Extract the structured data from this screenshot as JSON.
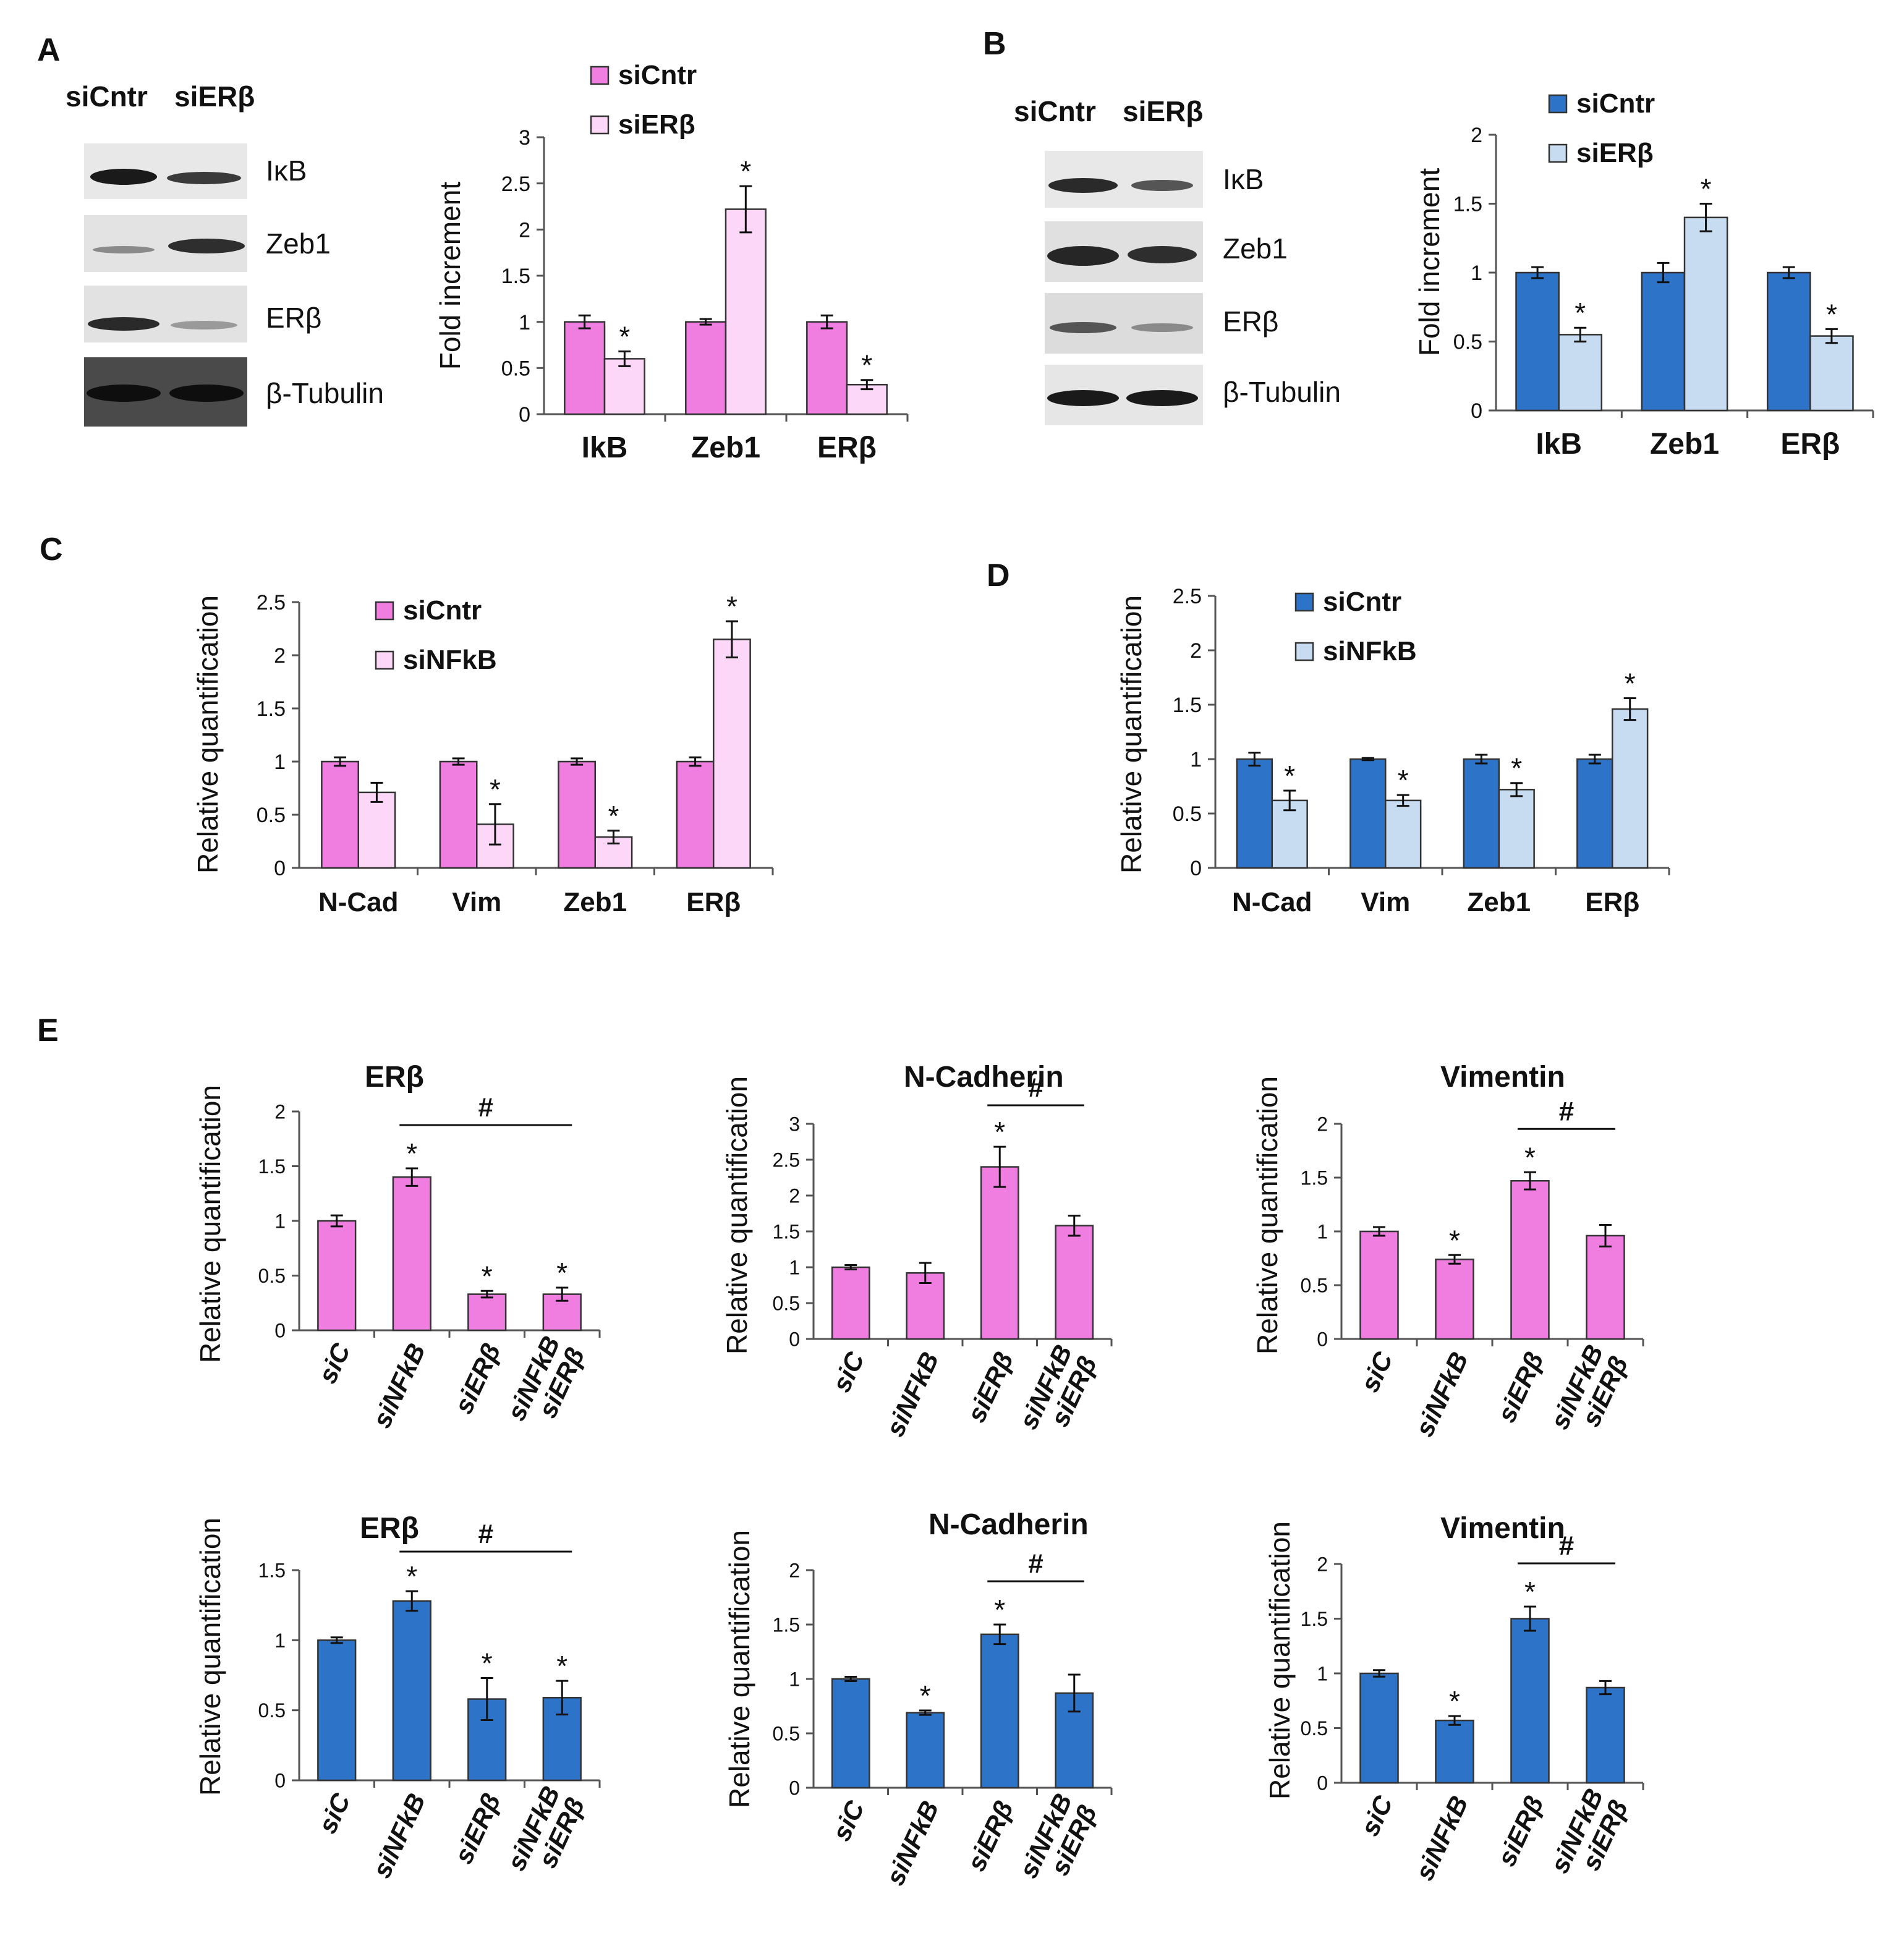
{
  "colors": {
    "pink": "#f07ee0",
    "pink_light": "#fdd7f7",
    "blue": "#2d73c8",
    "blue_light": "#c8dcf1",
    "border": "#333333"
  },
  "panels": {
    "A": {
      "label": "A",
      "blot_header": [
        "siCntr",
        "siERβ"
      ],
      "blot_labels": [
        "IκB",
        "Zeb1",
        "ERβ",
        "β-Tubulin"
      ]
    },
    "B": {
      "label": "B",
      "blot_header": [
        "siCntr",
        "siERβ"
      ],
      "blot_labels": [
        "IκB",
        "Zeb1",
        "ERβ",
        "β-Tubulin"
      ]
    },
    "C": {
      "label": "C"
    },
    "D": {
      "label": "D"
    },
    "E": {
      "label": "E"
    }
  },
  "chart_data": [
    {
      "id": "A",
      "type": "bar",
      "palette": "pink",
      "ylabel": "Fold increment",
      "ylim": [
        0,
        3
      ],
      "yticks": [
        "0",
        "0.5",
        "1",
        "1.5",
        "2",
        "2.5",
        "3"
      ],
      "categories": [
        "IkB",
        "Zeb1",
        "ERβ"
      ],
      "series": [
        {
          "name": "siCntr",
          "values": [
            1.0,
            1.0,
            1.0
          ],
          "errors": [
            0.07,
            0.03,
            0.07
          ],
          "stars": [
            false,
            false,
            false
          ]
        },
        {
          "name": "siERβ",
          "values": [
            0.6,
            2.22,
            0.32
          ],
          "errors": [
            0.08,
            0.25,
            0.05
          ],
          "stars": [
            true,
            true,
            true
          ]
        }
      ],
      "legend": "top"
    },
    {
      "id": "B",
      "type": "bar",
      "palette": "blue",
      "ylabel": "Fold increment",
      "ylim": [
        0,
        2
      ],
      "yticks": [
        "0",
        "0.5",
        "1",
        "1.5",
        "2"
      ],
      "categories": [
        "IkB",
        "Zeb1",
        "ERβ"
      ],
      "series": [
        {
          "name": "siCntr",
          "values": [
            1.0,
            1.0,
            1.0
          ],
          "errors": [
            0.04,
            0.07,
            0.04
          ],
          "stars": [
            false,
            false,
            false
          ]
        },
        {
          "name": "siERβ",
          "values": [
            0.55,
            1.4,
            0.54
          ],
          "errors": [
            0.05,
            0.1,
            0.05
          ],
          "stars": [
            true,
            true,
            true
          ]
        }
      ],
      "legend": "top"
    },
    {
      "id": "C",
      "type": "bar",
      "palette": "pink",
      "ylabel": "Relative quantification",
      "ylim": [
        0,
        2.5
      ],
      "yticks": [
        "0",
        "0.5",
        "1",
        "1.5",
        "2",
        "2.5"
      ],
      "categories": [
        "N-Cad",
        "Vim",
        "Zeb1",
        "ERβ"
      ],
      "series": [
        {
          "name": "siCntr",
          "values": [
            1.0,
            1.0,
            1.0,
            1.0
          ],
          "errors": [
            0.04,
            0.03,
            0.03,
            0.04
          ],
          "stars": [
            false,
            false,
            false,
            false
          ]
        },
        {
          "name": "siNFkB",
          "values": [
            0.71,
            0.41,
            0.29,
            2.15
          ],
          "errors": [
            0.09,
            0.19,
            0.06,
            0.17
          ],
          "stars": [
            false,
            true,
            true,
            true
          ]
        }
      ],
      "legend": "top-left"
    },
    {
      "id": "D",
      "type": "bar",
      "palette": "blue",
      "ylabel": "Relative quantification",
      "ylim": [
        0,
        2.5
      ],
      "yticks": [
        "0",
        "0.5",
        "1",
        "1.5",
        "2",
        "2.5"
      ],
      "categories": [
        "N-Cad",
        "Vim",
        "Zeb1",
        "ERβ"
      ],
      "series": [
        {
          "name": "siCntr",
          "values": [
            1.0,
            1.0,
            1.0,
            1.0
          ],
          "errors": [
            0.06,
            0.01,
            0.04,
            0.04
          ],
          "stars": [
            false,
            false,
            false,
            false
          ]
        },
        {
          "name": "siNFkB",
          "values": [
            0.62,
            0.62,
            0.72,
            1.46
          ],
          "errors": [
            0.09,
            0.05,
            0.06,
            0.1
          ],
          "stars": [
            true,
            true,
            true,
            true
          ]
        }
      ],
      "legend": "top-left"
    },
    {
      "id": "E1",
      "type": "bar",
      "palette": "pink",
      "title": "ERβ",
      "ylabel": "Relative quantification",
      "ylim": [
        0,
        2
      ],
      "yticks": [
        "0",
        "0.5",
        "1",
        "1.5",
        "2"
      ],
      "categories": [
        "siC",
        "siNFkB",
        "siERβ",
        "siNFkB siERβ"
      ],
      "series": [
        {
          "name": "",
          "values": [
            1.0,
            1.4,
            0.33,
            0.33
          ],
          "errors": [
            0.05,
            0.08,
            0.03,
            0.06
          ],
          "stars": [
            false,
            true,
            true,
            true
          ]
        }
      ],
      "significance": {
        "label": "#",
        "from": 1,
        "to": 3
      }
    },
    {
      "id": "E2",
      "type": "bar",
      "palette": "pink",
      "title": "N-Cadherin",
      "ylabel": "Relative quantification",
      "ylim": [
        0,
        3
      ],
      "yticks": [
        "0",
        "0.5",
        "1",
        "1.5",
        "2",
        "2.5",
        "3"
      ],
      "categories": [
        "siC",
        "siNFkB",
        "siERβ",
        "siNFkB siERβ"
      ],
      "series": [
        {
          "name": "",
          "values": [
            1.0,
            0.92,
            2.4,
            1.58
          ],
          "errors": [
            0.03,
            0.14,
            0.28,
            0.14
          ],
          "stars": [
            false,
            false,
            true,
            false
          ]
        }
      ],
      "significance": {
        "label": "#",
        "from": 2,
        "to": 3
      }
    },
    {
      "id": "E3",
      "type": "bar",
      "palette": "pink",
      "title": "Vimentin",
      "ylabel": "Relative quantification",
      "ylim": [
        0,
        2
      ],
      "yticks": [
        "0",
        "0.5",
        "1",
        "1.5",
        "2"
      ],
      "categories": [
        "siC",
        "siNFkB",
        "siERβ",
        "siNFkB siERβ"
      ],
      "series": [
        {
          "name": "",
          "values": [
            1.0,
            0.74,
            1.47,
            0.96
          ],
          "errors": [
            0.04,
            0.04,
            0.08,
            0.1
          ],
          "stars": [
            false,
            true,
            true,
            false
          ]
        }
      ],
      "significance": {
        "label": "#",
        "from": 2,
        "to": 3
      }
    },
    {
      "id": "E4",
      "type": "bar",
      "palette": "blue",
      "title": "ERβ",
      "ylabel": "Relative quantification",
      "ylim": [
        0,
        1.5
      ],
      "yticks": [
        "0",
        "0.5",
        "1",
        "1.5"
      ],
      "categories": [
        "siC",
        "siNFkB",
        "siERβ",
        "siNFkB siERβ"
      ],
      "series": [
        {
          "name": "",
          "values": [
            1.0,
            1.28,
            0.58,
            0.59
          ],
          "errors": [
            0.02,
            0.07,
            0.15,
            0.12
          ],
          "stars": [
            false,
            true,
            true,
            true
          ]
        }
      ],
      "significance": {
        "label": "#",
        "from": 1,
        "to": 3
      }
    },
    {
      "id": "E5",
      "type": "bar",
      "palette": "blue",
      "title": "N-Cadherin",
      "ylabel": "Relative quantification",
      "ylim": [
        0,
        2
      ],
      "yticks": [
        "0",
        "0.5",
        "1",
        "1.5",
        "2"
      ],
      "categories": [
        "siC",
        "siNFkB",
        "siERβ",
        "siNFkB siERβ"
      ],
      "series": [
        {
          "name": "",
          "values": [
            1.0,
            0.69,
            1.41,
            0.87
          ],
          "errors": [
            0.02,
            0.02,
            0.09,
            0.17
          ],
          "stars": [
            false,
            true,
            true,
            false
          ]
        }
      ],
      "significance": {
        "label": "#",
        "from": 2,
        "to": 3
      }
    },
    {
      "id": "E6",
      "type": "bar",
      "palette": "blue",
      "title": "Vimentin",
      "ylabel": "Relative quantification",
      "ylim": [
        0,
        2
      ],
      "yticks": [
        "0",
        "0.5",
        "1",
        "1.5",
        "2"
      ],
      "categories": [
        "siC",
        "siNFkB",
        "siERβ",
        "siNFkB siERβ"
      ],
      "series": [
        {
          "name": "",
          "values": [
            1.0,
            0.57,
            1.5,
            0.87
          ],
          "errors": [
            0.03,
            0.04,
            0.11,
            0.06
          ],
          "stars": [
            false,
            true,
            true,
            false
          ]
        }
      ],
      "significance": {
        "label": "#",
        "from": 2,
        "to": 3
      }
    }
  ]
}
